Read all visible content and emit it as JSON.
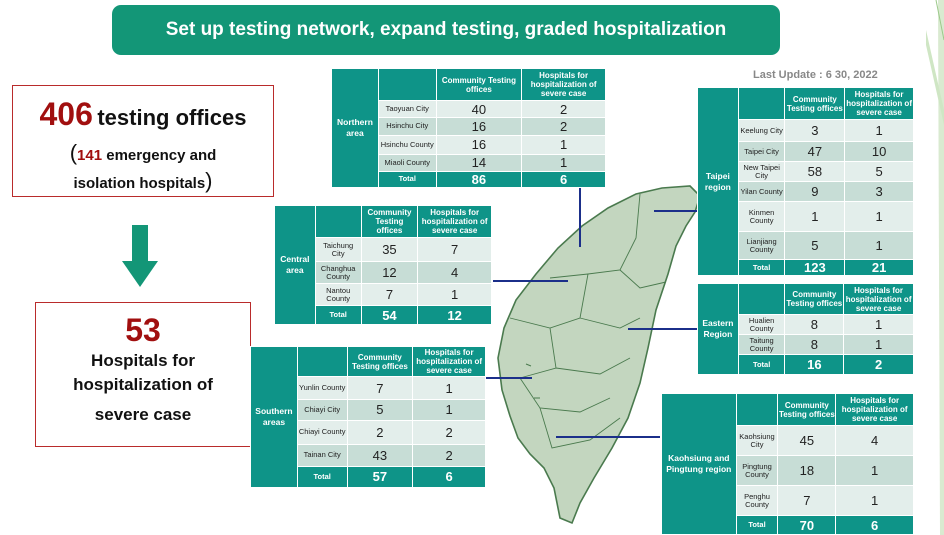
{
  "banner": {
    "title": "Set up testing network, expand testing, graded hospitalization"
  },
  "last_update": "Last Update : 6 30, 2022",
  "summary": {
    "offices_count": "406",
    "offices_label": "testing offices",
    "open_paren": "(",
    "emergency_count": "141",
    "emergency_label": "emergency and",
    "emergency_label2": "isolation hospitals",
    "close_paren": ")",
    "hospitals_count": "53",
    "hospitals_line1": "Hospitals for",
    "hospitals_line2": "hospitalization of",
    "hospitals_line3": "severe case"
  },
  "headers": {
    "community_northern": "Community Testing offices",
    "community": "Community Testing offices",
    "hospitals": "Hospitals for hospitalization of severe case",
    "total": "Total"
  },
  "regions": {
    "northern": {
      "name": "Northern area",
      "rows": [
        {
          "name": "Taoyuan City",
          "c": "40",
          "h": "2"
        },
        {
          "name": "Hsinchu City",
          "c": "16",
          "h": "2"
        },
        {
          "name": "Hsinchu County",
          "c": "16",
          "h": "1"
        },
        {
          "name": "Miaoli County",
          "c": "14",
          "h": "1"
        }
      ],
      "total_c": "86",
      "total_h": "6"
    },
    "central": {
      "name": "Central area",
      "rows": [
        {
          "name": "Taichung City",
          "c": "35",
          "h": "7"
        },
        {
          "name": "Changhua County",
          "c": "12",
          "h": "4"
        },
        {
          "name": "Nantou County",
          "c": "7",
          "h": "1"
        }
      ],
      "total_c": "54",
      "total_h": "12"
    },
    "southern": {
      "name": "Southern areas",
      "rows": [
        {
          "name": "Yunlin County",
          "c": "7",
          "h": "1"
        },
        {
          "name": "Chiayi City",
          "c": "5",
          "h": "1"
        },
        {
          "name": "Chiayi County",
          "c": "2",
          "h": "2"
        },
        {
          "name": "Tainan City",
          "c": "43",
          "h": "2"
        }
      ],
      "total_c": "57",
      "total_h": "6"
    },
    "taipei": {
      "name": "Taipei region",
      "rows": [
        {
          "name": "Keelung City",
          "c": "3",
          "h": "1"
        },
        {
          "name": "Taipei City",
          "c": "47",
          "h": "10"
        },
        {
          "name": "New Taipei City",
          "c": "58",
          "h": "5"
        },
        {
          "name": "Yilan County",
          "c": "9",
          "h": "3"
        },
        {
          "name": "Kinmen County",
          "c": "1",
          "h": "1"
        },
        {
          "name": "Lianjiang County",
          "c": "5",
          "h": "1"
        }
      ],
      "total_c": "123",
      "total_h": "21"
    },
    "eastern": {
      "name": "Eastern Region",
      "rows": [
        {
          "name": "Hualien County",
          "c": "8",
          "h": "1"
        },
        {
          "name": "Taitung County",
          "c": "8",
          "h": "1"
        }
      ],
      "total_c": "16",
      "total_h": "2"
    },
    "kaohsiung": {
      "name": "Kaohsiung and Pingtung region",
      "rows": [
        {
          "name": "Kaohsiung City",
          "c": "45",
          "h": "4"
        },
        {
          "name": "Pingtung County",
          "c": "18",
          "h": "1"
        },
        {
          "name": "Penghu County",
          "c": "7",
          "h": "1"
        }
      ],
      "total_c": "70",
      "total_h": "6"
    }
  },
  "colors": {
    "teal": "#0e9488",
    "banner": "#139677",
    "accent_red": "#a10f0f"
  }
}
